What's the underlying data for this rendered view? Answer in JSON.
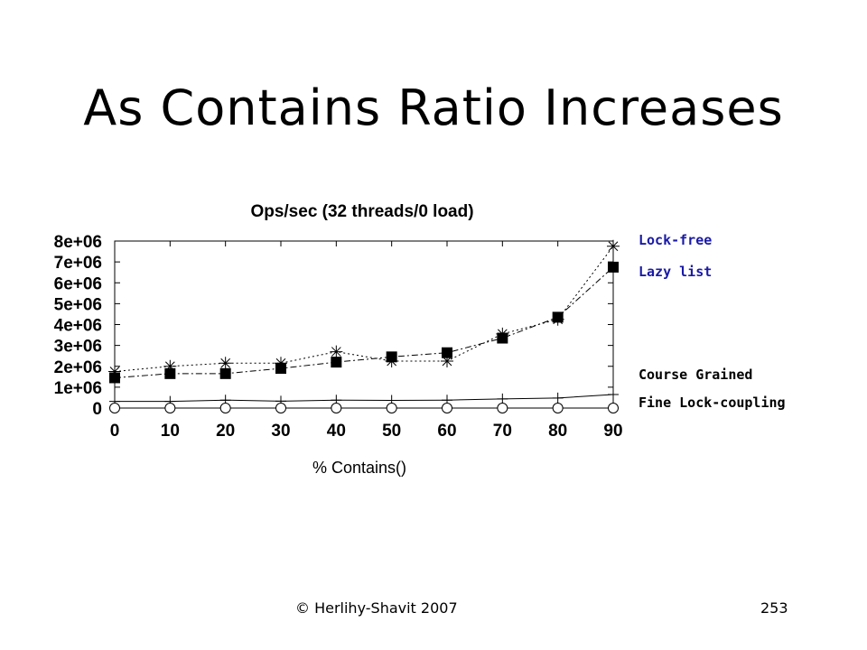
{
  "slide": {
    "title": "As Contains Ratio Increases",
    "footer_left": "© Herlihy-Shavit 2007",
    "page_number": "253"
  },
  "legend_colors": {
    "lock_free": "#1a1aa6",
    "lazy_list": "#1a1aa6",
    "other": "#000000"
  },
  "chart_data": {
    "type": "line",
    "title": "Ops/sec (32 threads/0 load)",
    "xlabel": "% Contains()",
    "ylabel": "",
    "x": [
      0,
      10,
      20,
      30,
      40,
      50,
      60,
      70,
      80,
      90
    ],
    "xticks": [
      "0",
      "10",
      "20",
      "30",
      "40",
      "50",
      "60",
      "70",
      "80",
      "90"
    ],
    "yticks": [
      "0",
      "1e+06",
      "2e+06",
      "3e+06",
      "4e+06",
      "5e+06",
      "6e+06",
      "7e+06",
      "8e+06"
    ],
    "ylim": [
      0,
      8000000
    ],
    "xlim": [
      0,
      90
    ],
    "grid": false,
    "series": [
      {
        "name": "Lock-free",
        "marker": "asterisk",
        "dash": "2,3",
        "values": [
          1750000,
          2000000,
          2150000,
          2150000,
          2700000,
          2250000,
          2250000,
          3550000,
          4250000,
          7750000
        ]
      },
      {
        "name": "Lazy list",
        "marker": "square",
        "dash": "7,3,2,3",
        "values": [
          1450000,
          1650000,
          1650000,
          1900000,
          2200000,
          2450000,
          2650000,
          3350000,
          4350000,
          6750000
        ]
      },
      {
        "name": "Course Grained",
        "marker": "plus",
        "dash": "",
        "values": [
          320000,
          320000,
          380000,
          330000,
          380000,
          370000,
          380000,
          440000,
          480000,
          650000
        ]
      },
      {
        "name": "Fine Lock-coupling",
        "marker": "circle",
        "dash": "2,3",
        "values": [
          0,
          0,
          0,
          0,
          0,
          0,
          0,
          0,
          0,
          0
        ]
      }
    ]
  }
}
